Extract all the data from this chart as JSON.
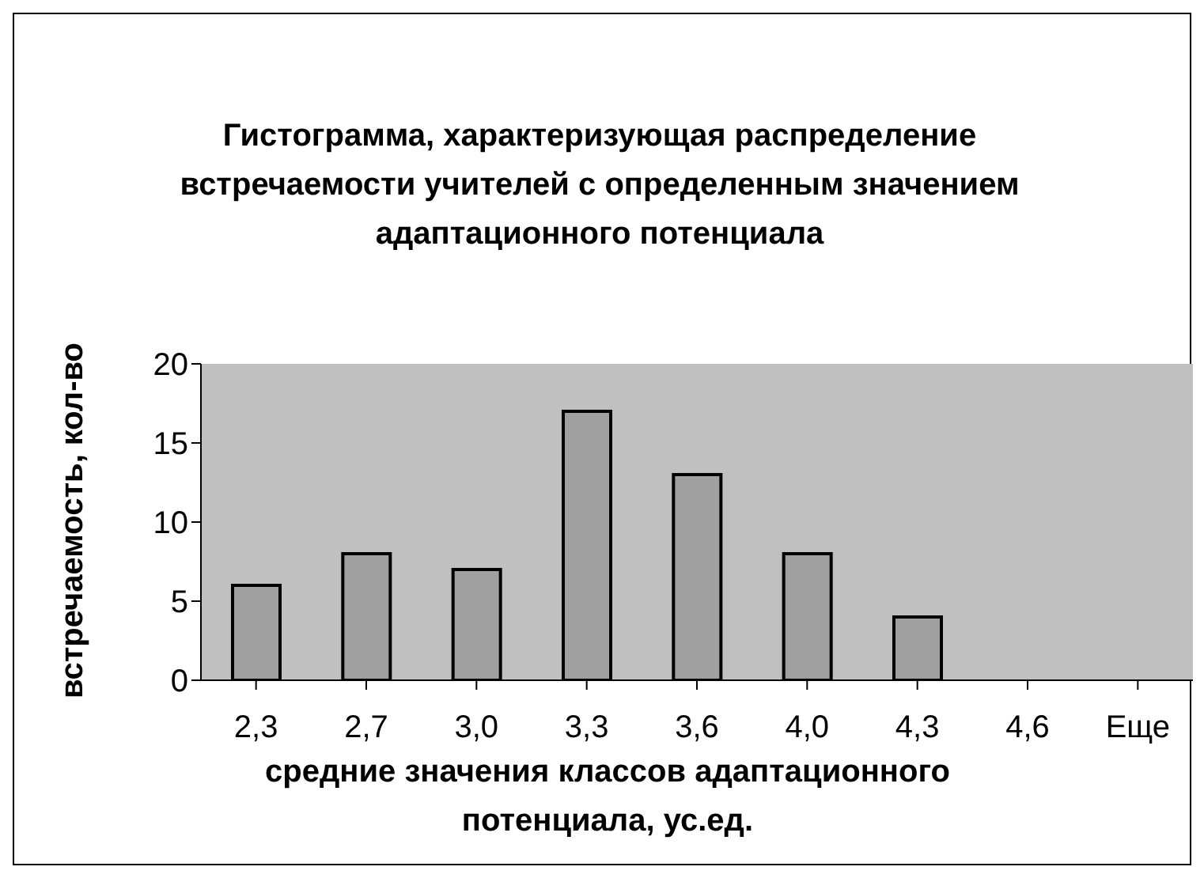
{
  "chart_data": {
    "type": "bar",
    "title": "Гистограмма, характеризующая распределение встречаемости учителей с определенным значением адаптационного потенциала",
    "xlabel": "средние значения классов адаптационного потенциала, ус.ед.",
    "ylabel": "встречаемость, кол-во",
    "categories": [
      "2,3",
      "2,7",
      "3,0",
      "3,3",
      "3,6",
      "4,0",
      "4,3",
      "4,6",
      "Еще"
    ],
    "values": [
      6,
      8,
      7,
      17,
      13,
      8,
      4,
      0,
      0
    ],
    "color": "#a0a0a0",
    "ylim": [
      0,
      20
    ],
    "yticks": [
      0,
      5,
      10,
      15,
      20
    ],
    "grid": false,
    "legend": false
  }
}
